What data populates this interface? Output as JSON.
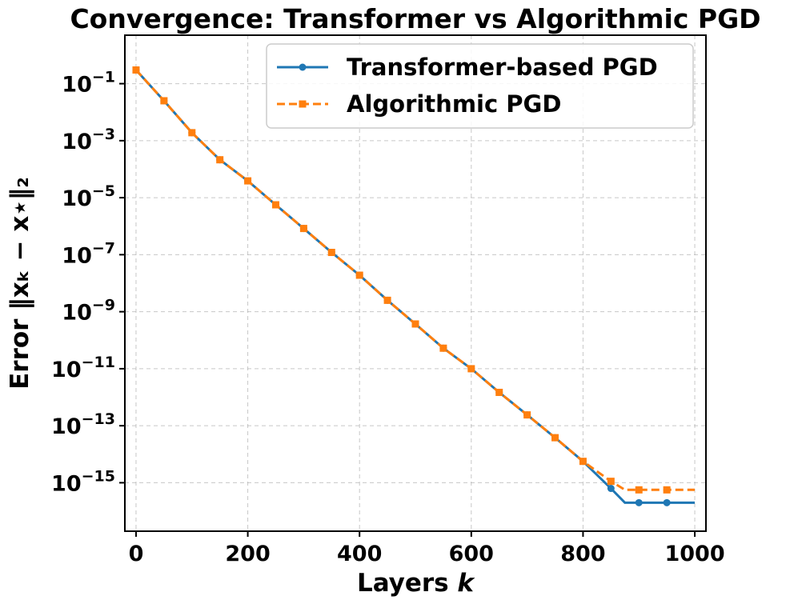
{
  "chart_data": {
    "type": "line",
    "title": "Convergence: Transformer vs Algorithmic PGD",
    "xlabel_text": "Layers ",
    "xlabel_var": "k",
    "ylabel": "Error ‖xₖ − x⋆‖₂",
    "yscale": "log",
    "xlim": [
      -20,
      1020
    ],
    "ylim_exp": [
      -16.7,
      0.7
    ],
    "grid": true,
    "legend_position": "upper-right",
    "x_ticks": [
      "0",
      "200",
      "400",
      "600",
      "800",
      "1000"
    ],
    "x_tick_values": [
      0,
      200,
      400,
      600,
      800,
      1000
    ],
    "y_ticks": [
      {
        "base": "10",
        "exp": "−1",
        "value_exp": -1
      },
      {
        "base": "10",
        "exp": "−3",
        "value_exp": -3
      },
      {
        "base": "10",
        "exp": "−5",
        "value_exp": -5
      },
      {
        "base": "10",
        "exp": "−7",
        "value_exp": -7
      },
      {
        "base": "10",
        "exp": "−9",
        "value_exp": -9
      },
      {
        "base": "10",
        "exp": "−11",
        "value_exp": -11
      },
      {
        "base": "10",
        "exp": "−13",
        "value_exp": -13
      },
      {
        "base": "10",
        "exp": "−15",
        "value_exp": -15
      }
    ],
    "series": [
      {
        "name": "Transformer-based PGD",
        "color": "#1f77b4",
        "style": "solid",
        "marker": "circle",
        "x": [
          0,
          50,
          100,
          150,
          200,
          250,
          300,
          350,
          400,
          450,
          500,
          550,
          600,
          650,
          700,
          750,
          800,
          850,
          875,
          900,
          950,
          1000
        ],
        "log10_y": [
          -0.52,
          -1.6,
          -2.72,
          -3.67,
          -4.41,
          -5.25,
          -6.08,
          -6.92,
          -7.72,
          -8.6,
          -9.43,
          -10.28,
          -11.0,
          -11.83,
          -12.62,
          -13.42,
          -14.25,
          -15.2,
          -15.7,
          -15.7,
          -15.7,
          -15.7
        ],
        "marker_x": [
          0,
          50,
          100,
          150,
          200,
          250,
          300,
          350,
          400,
          450,
          500,
          550,
          600,
          650,
          700,
          750,
          800,
          850,
          900,
          950
        ]
      },
      {
        "name": "Algorithmic PGD",
        "color": "#ff7f0e",
        "style": "dashed",
        "marker": "square",
        "x": [
          0,
          50,
          100,
          150,
          200,
          250,
          300,
          350,
          400,
          450,
          500,
          550,
          600,
          650,
          700,
          750,
          800,
          850,
          875,
          900,
          950,
          1000
        ],
        "log10_y": [
          -0.52,
          -1.6,
          -2.72,
          -3.67,
          -4.41,
          -5.25,
          -6.08,
          -6.92,
          -7.72,
          -8.6,
          -9.43,
          -10.28,
          -11.0,
          -11.83,
          -12.62,
          -13.42,
          -14.25,
          -14.95,
          -15.25,
          -15.25,
          -15.25,
          -15.25
        ],
        "marker_x": [
          0,
          50,
          100,
          150,
          200,
          250,
          300,
          350,
          400,
          450,
          500,
          550,
          600,
          650,
          700,
          750,
          800,
          850,
          900,
          950
        ]
      }
    ]
  }
}
